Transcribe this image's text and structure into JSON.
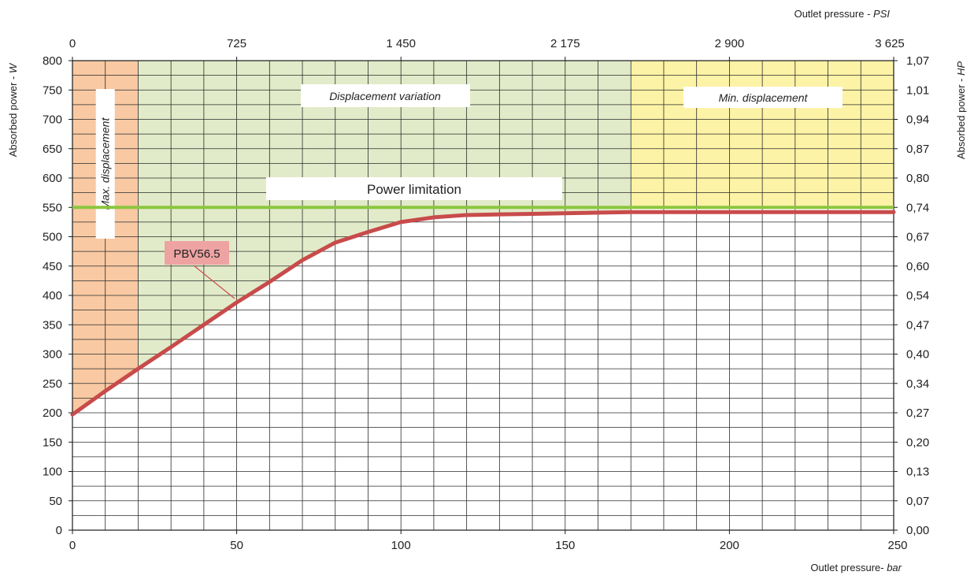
{
  "chart_data": {
    "type": "line",
    "x_bottom": {
      "title_main": "Outlet pressure- ",
      "title_unit": "bar",
      "range": [
        0,
        250
      ],
      "ticks": [
        "0",
        "50",
        "100",
        "150",
        "200",
        "250"
      ]
    },
    "x_top": {
      "title_main": "Outlet pressure - ",
      "title_unit": "PSI",
      "ticks": [
        "0",
        "725",
        "1 450",
        "2 175",
        "2 900",
        "3 625"
      ]
    },
    "y_left": {
      "title_main": "Absorbed power - ",
      "title_unit": "W",
      "range": [
        0,
        800
      ],
      "ticks": [
        "0",
        "50",
        "100",
        "150",
        "200",
        "250",
        "300",
        "350",
        "400",
        "450",
        "500",
        "550",
        "600",
        "650",
        "700",
        "750",
        "800"
      ]
    },
    "y_right": {
      "title_main": "Absorbed power - ",
      "title_unit": "HP",
      "ticks": [
        "0,00",
        "0,07",
        "0,13",
        "0,20",
        "0,27",
        "0,34",
        "0,40",
        "0,47",
        "0,54",
        "0,60",
        "0,67",
        "0,74",
        "0,80",
        "0,87",
        "0,94",
        "1,01",
        "1,07"
      ]
    },
    "grid": true,
    "zones": [
      {
        "label": "Max. displacement",
        "x_range": [
          0,
          20
        ],
        "color": "#f8c9a3"
      },
      {
        "label": "Displacement variation",
        "x_range": [
          20,
          170
        ],
        "color": "#e2ebc9"
      },
      {
        "label": "Min. displacement",
        "x_range": [
          170,
          250
        ],
        "color": "#fcf3a6"
      }
    ],
    "power_limit": {
      "label": "Power limitation",
      "y": 550,
      "color": "#8cc63f"
    },
    "series": [
      {
        "name": "PBV56.5",
        "color": "#c84b4b",
        "x": [
          0,
          10,
          20,
          30,
          40,
          50,
          60,
          70,
          80,
          90,
          100,
          110,
          120,
          140,
          170,
          200,
          250
        ],
        "y": [
          197,
          237,
          275,
          312,
          350,
          388,
          423,
          460,
          490,
          508,
          525,
          533,
          537,
          539,
          542,
          542,
          542
        ]
      }
    ]
  }
}
